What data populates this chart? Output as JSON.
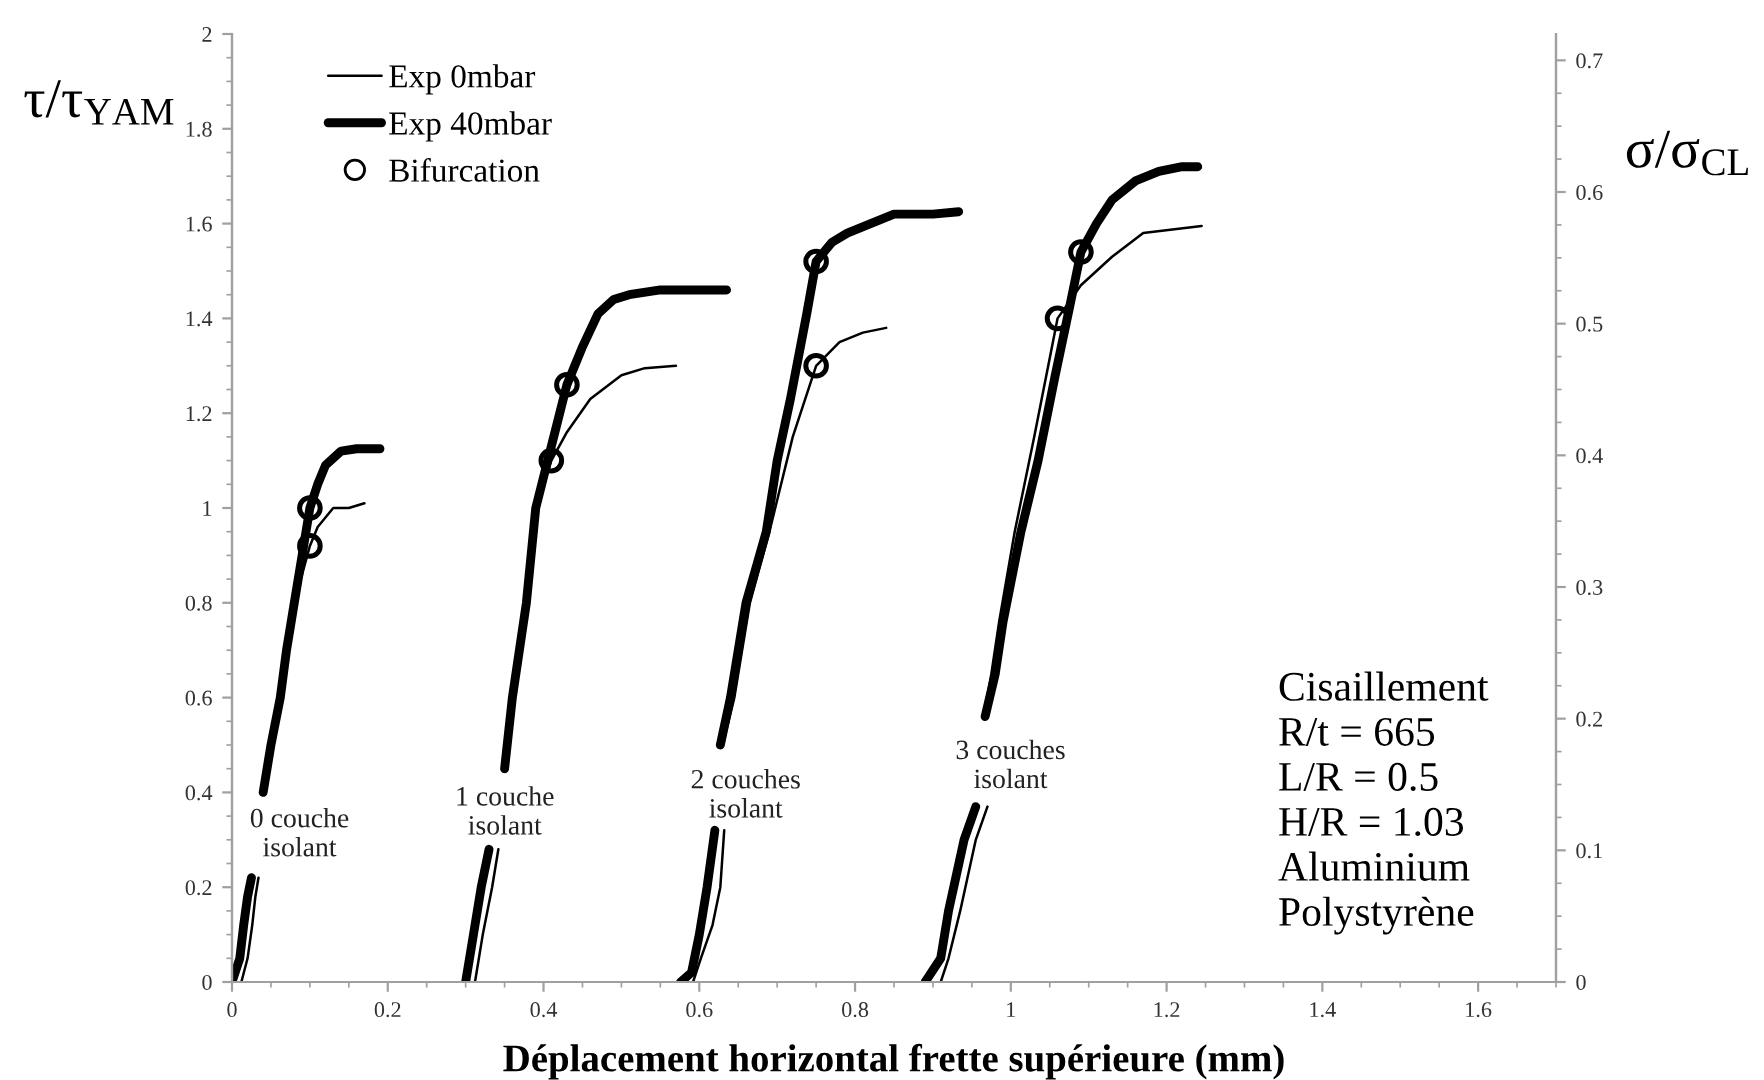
{
  "chart_data": {
    "type": "line",
    "xlabel": "Déplacement horizontal frette supérieure (mm)",
    "ylabel": "τ/τ$_{YAM}$",
    "y2label": "σ/σ$_{CL}$",
    "xlim": [
      0,
      1.7
    ],
    "xticks": [
      0,
      0.2,
      0.4,
      0.6,
      0.8,
      1,
      1.2,
      1.4,
      1.6
    ],
    "ylim": [
      0,
      2
    ],
    "yticks": [
      0,
      0.2,
      0.4,
      0.6,
      0.8,
      1,
      1.2,
      1.4,
      1.6,
      1.8,
      2
    ],
    "y2lim": [
      0,
      0.72
    ],
    "y2ticks": [
      0,
      0.1,
      0.2,
      0.3,
      0.4,
      0.5,
      0.6,
      0.7
    ],
    "grid": false,
    "legend": "top left",
    "line_style": "solid",
    "series": [
      {
        "name": "Exp 0mbar",
        "color": "#000000",
        "marker": "none",
        "x": [
          0.012,
          0.02,
          0.026,
          0.03,
          0.034,
          null,
          0.04,
          0.05,
          0.06,
          0.07,
          0.08,
          0.09,
          0.1,
          0.11,
          0.12,
          0.13,
          0.15,
          0.17
        ],
        "values": [
          0,
          0.05,
          0.12,
          0.18,
          0.22,
          null,
          0.4,
          0.5,
          0.6,
          0.7,
          0.8,
          0.86,
          0.92,
          0.96,
          0.98,
          1.0,
          1.0,
          1.01
        ]
      },
      {
        "name": "Exp 40mbar",
        "color": "#000000",
        "marker": "none",
        "x": [
          0,
          0.01,
          0.015,
          0.02,
          0.025,
          null,
          0.04,
          0.05,
          0.062,
          0.07,
          0.08,
          0.09,
          0.1,
          0.11,
          0.12,
          0.14,
          0.16,
          0.19
        ],
        "values": [
          0,
          0.05,
          0.12,
          0.18,
          0.22,
          null,
          0.4,
          0.5,
          0.6,
          0.7,
          0.8,
          0.9,
          1.0,
          1.05,
          1.09,
          1.12,
          1.125,
          1.125
        ]
      },
      {
        "color": "#000000",
        "marker": "none",
        "x": [
          0.312,
          0.322,
          0.334,
          0.342,
          null,
          0.35,
          0.36,
          0.378,
          0.39,
          0.41,
          0.43,
          0.46,
          0.5,
          0.53,
          0.57
        ],
        "values": [
          0,
          0.1,
          0.2,
          0.28,
          null,
          0.45,
          0.6,
          0.8,
          1.0,
          1.1,
          1.16,
          1.23,
          1.28,
          1.295,
          1.3
        ]
      },
      {
        "color": "#000000",
        "marker": "none",
        "x": [
          0.3,
          0.31,
          0.32,
          0.33,
          null,
          0.35,
          0.36,
          0.378,
          0.39,
          0.41,
          0.43,
          0.45,
          0.47,
          0.49,
          0.51,
          0.55,
          0.6,
          0.635
        ],
        "values": [
          0,
          0.1,
          0.2,
          0.28,
          null,
          0.45,
          0.6,
          0.8,
          1.0,
          1.13,
          1.26,
          1.34,
          1.41,
          1.44,
          1.45,
          1.46,
          1.46,
          1.46
        ]
      },
      {
        "color": "#000000",
        "marker": "none",
        "x": [
          0.592,
          0.602,
          0.617,
          0.627,
          0.632,
          null,
          0.63,
          0.645,
          0.665,
          0.69,
          0.72,
          0.75,
          0.78,
          0.81,
          0.84
        ],
        "values": [
          0,
          0.05,
          0.12,
          0.2,
          0.32,
          null,
          0.5,
          0.6,
          0.8,
          0.95,
          1.15,
          1.3,
          1.35,
          1.37,
          1.38
        ]
      },
      {
        "color": "#000000",
        "marker": "none",
        "x": [
          0.576,
          0.59,
          0.6,
          0.61,
          0.62,
          null,
          0.627,
          0.64,
          0.66,
          0.686,
          0.7,
          0.717,
          0.738,
          0.75,
          0.77,
          0.79,
          0.82,
          0.85,
          0.9,
          0.933
        ],
        "values": [
          0,
          0.02,
          0.1,
          0.2,
          0.32,
          null,
          0.5,
          0.6,
          0.8,
          0.95,
          1.1,
          1.23,
          1.41,
          1.52,
          1.56,
          1.58,
          1.6,
          1.62,
          1.62,
          1.625
        ]
      },
      {
        "color": "#000000",
        "marker": "none",
        "x": [
          0.91,
          0.92,
          0.935,
          0.955,
          0.97,
          null,
          0.965,
          0.975,
          0.985,
          1.005,
          1.03,
          1.06,
          1.09,
          1.13,
          1.17,
          1.245
        ],
        "values": [
          0,
          0.05,
          0.15,
          0.3,
          0.37,
          null,
          0.56,
          0.65,
          0.76,
          0.95,
          1.15,
          1.4,
          1.47,
          1.53,
          1.58,
          1.595
        ]
      },
      {
        "color": "#000000",
        "marker": "none",
        "x": [
          0.89,
          0.91,
          0.92,
          0.94,
          0.955,
          null,
          0.967,
          0.98,
          0.99,
          1.013,
          1.035,
          1.057,
          1.075,
          1.09,
          1.11,
          1.13,
          1.16,
          1.19,
          1.22,
          1.24
        ],
        "values": [
          0,
          0.05,
          0.15,
          0.3,
          0.37,
          null,
          0.56,
          0.65,
          0.76,
          0.95,
          1.1,
          1.28,
          1.42,
          1.54,
          1.6,
          1.65,
          1.69,
          1.71,
          1.72,
          1.72
        ]
      },
      {
        "name": "Bifurcation",
        "type": "scatter",
        "color": "#000000",
        "marker": "circle",
        "x": [
          0.1,
          0.43,
          0.75,
          1.09,
          0.1,
          0.41,
          0.75,
          1.06
        ],
        "values": [
          1.0,
          1.26,
          1.52,
          1.54,
          0.92,
          1.1,
          1.3,
          1.4
        ]
      }
    ],
    "annotations": [
      "0 couche\nisolant",
      "1 couche\nisolant",
      "2 couches\nisolant",
      "3 couches\nisolant",
      "Cisaillement\nR/t = 665\nL/R = 0.5\nH/R = 1.03\nAluminium\nPolystyrène"
    ]
  }
}
